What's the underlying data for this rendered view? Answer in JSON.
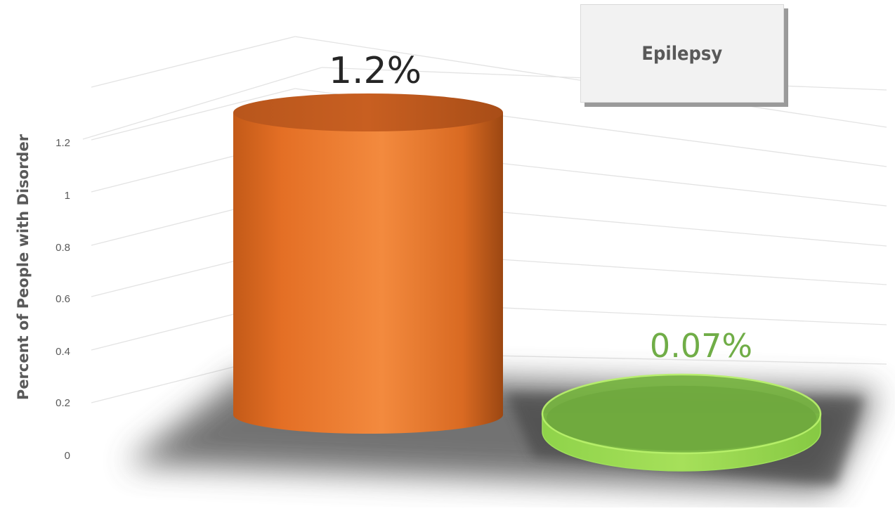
{
  "chart_data": {
    "type": "bar",
    "style": "3d-cylinder",
    "categories": [
      "",
      ""
    ],
    "values": [
      1.2,
      0.07
    ],
    "value_labels": [
      "1.2%",
      "0.07%"
    ],
    "bar_colors": [
      "#ED7D31",
      "#70AD47"
    ],
    "label_colors": [
      "#262626",
      "#70AD47"
    ],
    "ylabel": "Percent of People with Disorder",
    "yticks": [
      "0",
      "0.2",
      "0.4",
      "0.6",
      "0.8",
      "1",
      "1.2"
    ],
    "ylim": [
      0,
      1.4
    ],
    "grid": true,
    "legend": {
      "label": "Epilepsy",
      "placement": "top-right"
    }
  }
}
